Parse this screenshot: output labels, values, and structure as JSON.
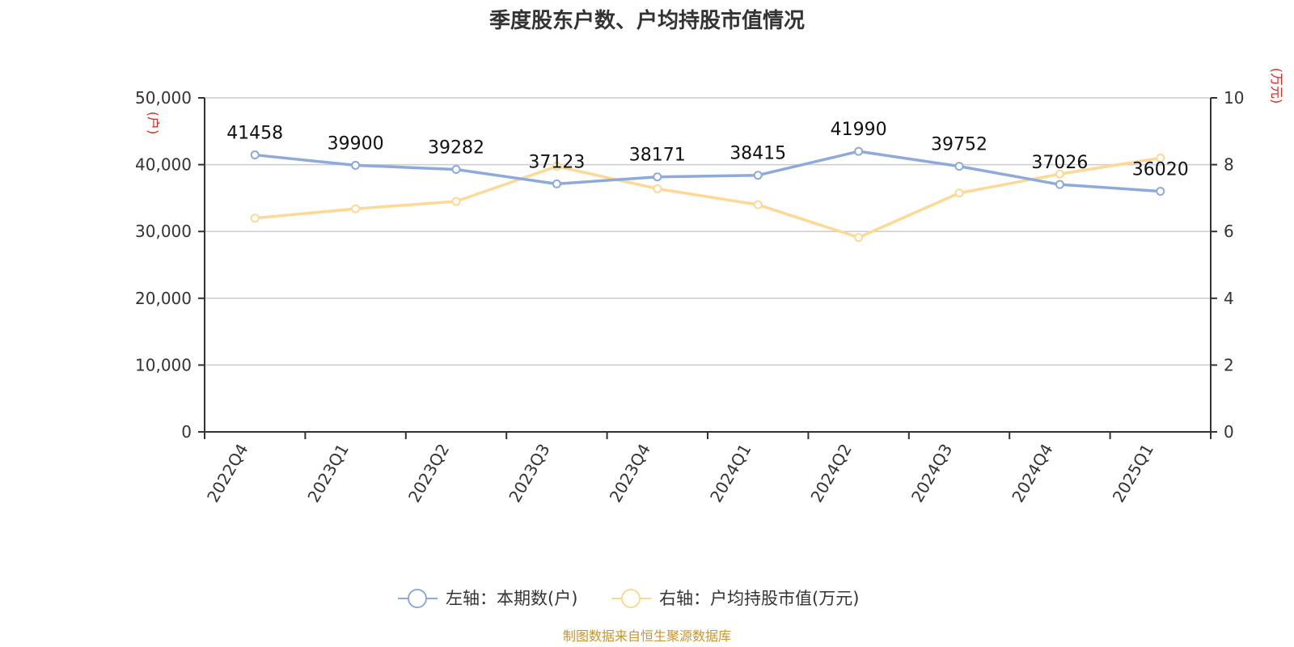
{
  "chart_data": {
    "type": "line",
    "title": "季度股东户数、户均持股市值情况",
    "categories": [
      "2022Q4",
      "2023Q1",
      "2023Q2",
      "2023Q3",
      "2023Q4",
      "2024Q1",
      "2024Q2",
      "2024Q3",
      "2024Q4",
      "2025Q1"
    ],
    "y_left": {
      "unit": "(户)",
      "ylim": [
        0,
        50000
      ],
      "ticks": [
        0,
        10000,
        20000,
        30000,
        40000,
        50000
      ],
      "tick_labels": [
        "0",
        "10,000",
        "20,000",
        "30,000",
        "40,000",
        "50,000"
      ]
    },
    "y_right": {
      "unit": "(万元)",
      "ylim": [
        0,
        10
      ],
      "ticks": [
        0,
        2,
        4,
        6,
        8,
        10
      ],
      "tick_labels": [
        "0",
        "2",
        "4",
        "6",
        "8",
        "10"
      ]
    },
    "series": [
      {
        "name": "左轴：本期数(户)",
        "axis": "left",
        "color": "#8eaadb",
        "values": [
          41458,
          39900,
          39282,
          37123,
          38171,
          38415,
          41990,
          39752,
          37026,
          36020
        ],
        "labels": [
          "41458",
          "39900",
          "39282",
          "37123",
          "38171",
          "38415",
          "41990",
          "39752",
          "37026",
          "36020"
        ]
      },
      {
        "name": "右轴：户均持股市值(万元)",
        "axis": "right",
        "color": "#fdd995",
        "values": [
          6.4,
          6.68,
          6.9,
          7.95,
          7.28,
          6.8,
          5.82,
          7.15,
          7.72,
          8.2
        ]
      }
    ],
    "grid": true,
    "legend_position": "bottom",
    "unit_color": "#e0261b"
  },
  "source_note": "制图数据来自恒生聚源数据库",
  "source_color": "#c8962e"
}
